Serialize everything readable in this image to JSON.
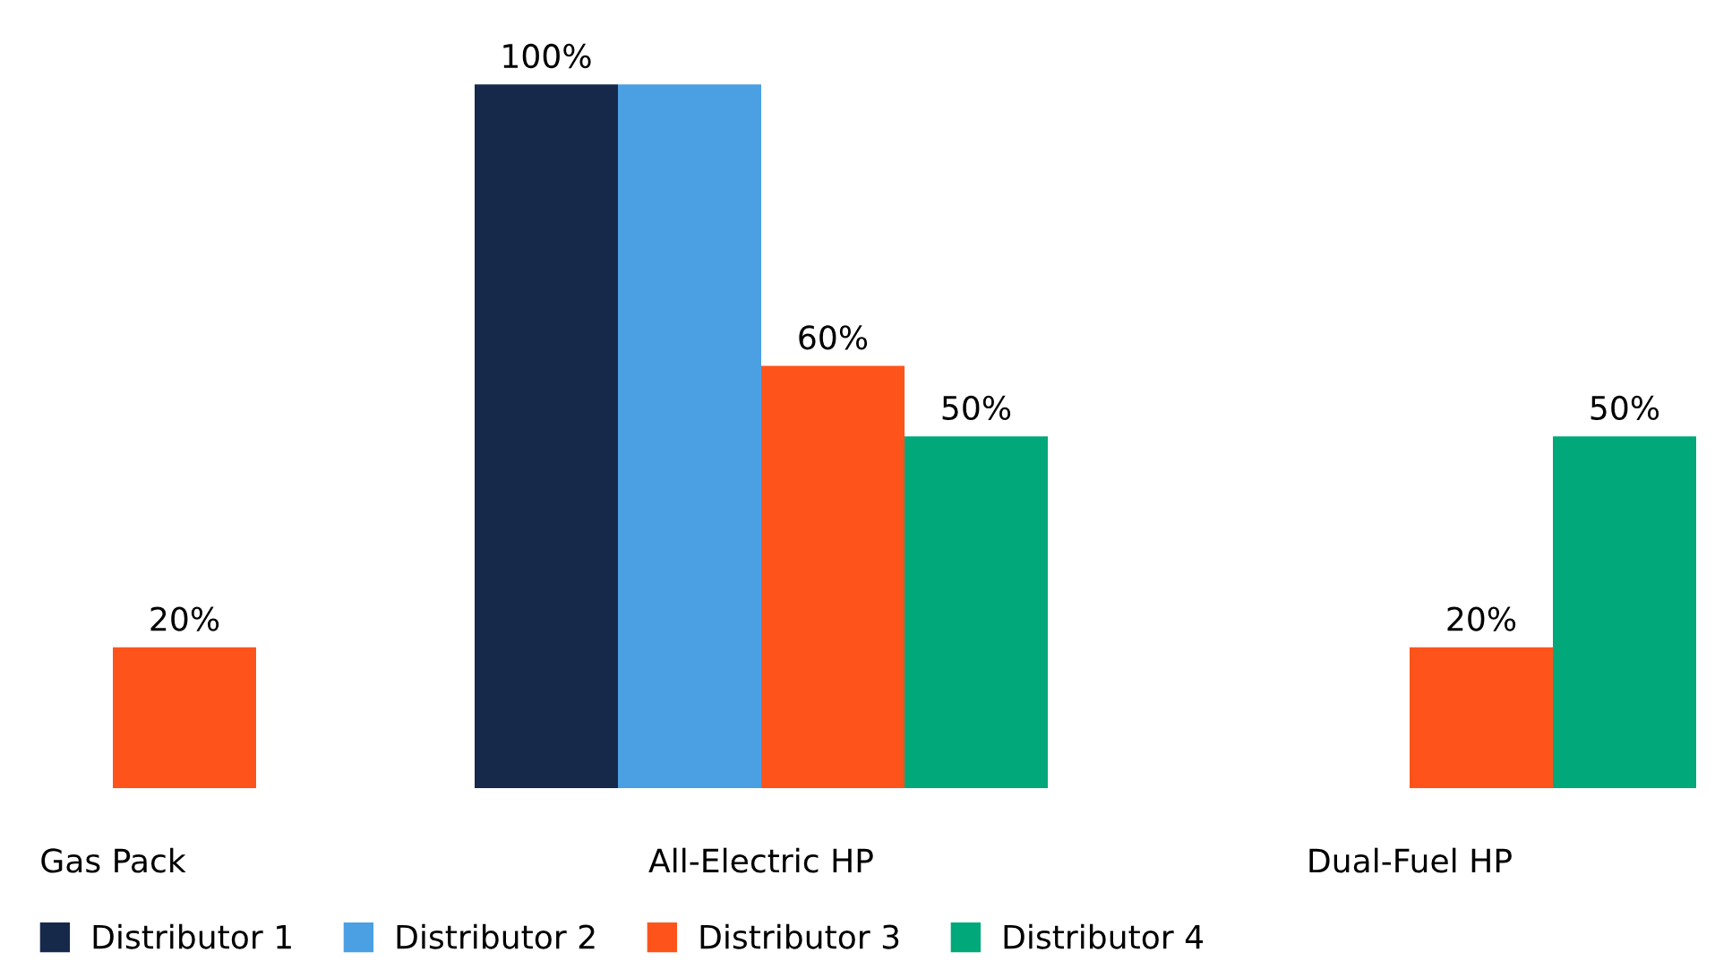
{
  "chart_data": {
    "type": "bar",
    "categories": [
      "Gas Pack",
      "All-Electric HP",
      "Dual-Fuel HP"
    ],
    "series": [
      {
        "name": "Distributor 1",
        "color": "#16294a",
        "values": [
          null,
          100,
          null
        ],
        "value_labels": [
          null,
          "100%",
          null
        ]
      },
      {
        "name": "Distributor 2",
        "color": "#4aa0e2",
        "values": [
          null,
          100,
          null
        ],
        "value_labels": [
          null,
          null,
          null
        ]
      },
      {
        "name": "Distributor 3",
        "color": "#fe541b",
        "values": [
          20,
          60,
          20
        ],
        "value_labels": [
          "20%",
          "60%",
          "20%"
        ]
      },
      {
        "name": "Distributor 4",
        "color": "#00a87a",
        "values": [
          null,
          50,
          50
        ],
        "value_labels": [
          null,
          "50%",
          "50%"
        ]
      }
    ],
    "grid": false,
    "legend": "bottom",
    "tick_labels": "x"
  }
}
